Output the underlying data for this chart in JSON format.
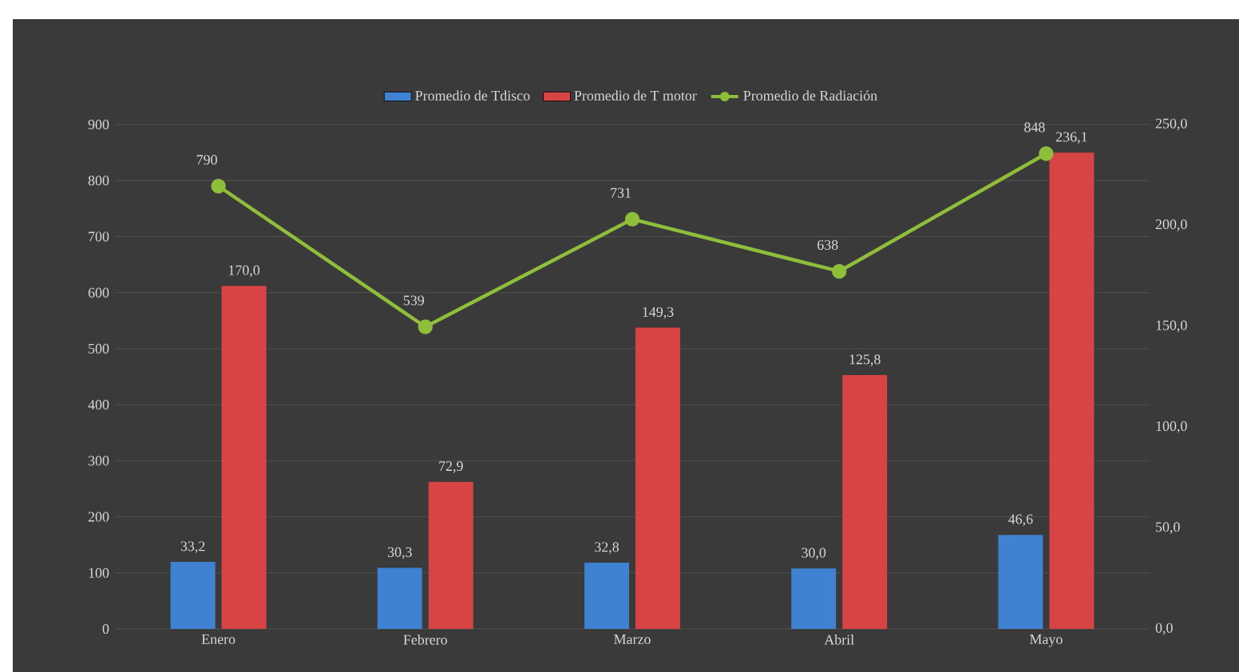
{
  "chart_data": {
    "type": "bar",
    "categories": [
      "Enero",
      "Febrero",
      "Marzo",
      "Abril",
      "Mayo"
    ],
    "series": [
      {
        "name": "Promedio de Tdisco",
        "axis": "y2",
        "color": "#3f82d2",
        "values": [
          33.2,
          30.3,
          32.8,
          30.0,
          46.6
        ],
        "value_labels": [
          "33,2",
          "30,3",
          "32,8",
          "30,0",
          "46,6"
        ]
      },
      {
        "name": "Promedio de T motor",
        "axis": "y2",
        "color": "#d84444",
        "values": [
          170.0,
          72.9,
          149.3,
          125.8,
          236.1
        ],
        "value_labels": [
          "170,0",
          "72,9",
          "149,3",
          "125,8",
          "236,1"
        ]
      },
      {
        "name": "Promedio de Radiación",
        "type": "line",
        "axis": "y",
        "color": "#8fbf3a",
        "values": [
          790,
          539,
          731,
          638,
          848
        ],
        "value_labels": [
          "790",
          "539",
          "731",
          "638",
          "848"
        ]
      }
    ],
    "ylim": [
      0,
      900
    ],
    "yticks": [
      0,
      100,
      200,
      300,
      400,
      500,
      600,
      700,
      800,
      900
    ],
    "y2lim": [
      0,
      250
    ],
    "y2ticks": [
      {
        "value": 0,
        "label": "0,0"
      },
      {
        "value": 50,
        "label": "50,0"
      },
      {
        "value": 100,
        "label": "100,0"
      },
      {
        "value": 150,
        "label": "150,0"
      },
      {
        "value": 200,
        "label": "200,0"
      },
      {
        "value": 250,
        "label": "250,0"
      }
    ],
    "grid": "y",
    "legend": "top",
    "marker": "circle"
  }
}
